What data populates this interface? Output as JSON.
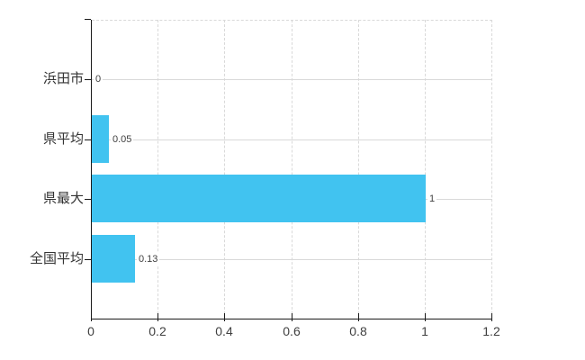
{
  "chart_data": {
    "type": "bar",
    "orientation": "horizontal",
    "title": "",
    "xlabel": "",
    "ylabel": "",
    "categories": [
      "浜田市",
      "県平均",
      "県最大",
      "全国平均"
    ],
    "values": [
      0,
      0.05,
      1,
      0.13
    ],
    "value_labels": [
      "0",
      "0.05",
      "1",
      "0.13"
    ],
    "xlim": [
      0,
      1.2
    ],
    "x_ticks": [
      0,
      0.2,
      0.4,
      0.6,
      0.8,
      1,
      1.2
    ],
    "x_tick_labels": [
      "0",
      "0.2",
      "0.4",
      "0.6",
      "0.8",
      "1",
      "1.2"
    ],
    "grid": true,
    "legend_position": "none",
    "colors": {
      "bar": "#41C3F0",
      "axis": "#1a1a1a",
      "gridline": "#d9d9d9",
      "tick_label": "#404040",
      "value_label": "#404040",
      "category_label": "#333333",
      "background": "#ffffff"
    }
  }
}
